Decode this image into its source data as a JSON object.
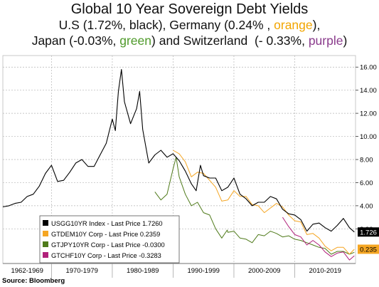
{
  "title": {
    "line1": "Global 10 Year Sovereign Debt Yields",
    "line2_a": "U.S (1.72%, black), Germany (0.24% , ",
    "line2_orange": "orange",
    "line2_b": "),",
    "line3_a": "Japan (-0.03%, ",
    "line3_green": "green",
    "line3_b": ") and Switzerland  (- 0.33%, ",
    "line3_purple": "purple",
    "line3_c": ")"
  },
  "source": "Source: Bloomberg",
  "chart_data": {
    "type": "line",
    "title": "Global 10 Year Sovereign Debt Yields",
    "x_tick_labels": [
      "1962-1969",
      "1970-1979",
      "1980-1989",
      "1990-1999",
      "2000-2009",
      "2010-2019"
    ],
    "x_tick_bounds": [
      1962,
      1970,
      1980,
      1990,
      2000,
      2010,
      2020
    ],
    "xlim": [
      1962,
      2020
    ],
    "ylim": [
      -1,
      17
    ],
    "y_ticks": [
      2,
      4,
      6,
      8,
      10,
      12,
      14,
      16
    ],
    "y_tick_labels": [
      "2.00",
      "4.00",
      "6.00",
      "8.00",
      "10.00",
      "12.00",
      "14.00",
      "16.00"
    ],
    "grid": true,
    "legend_position": "bottom-left",
    "last_price_tags": [
      {
        "label": "1.726",
        "value": 1.726,
        "color": "#000000",
        "text_color": "#ffffff"
      },
      {
        "label": "0.235",
        "value": 0.235,
        "color": "#f5a623",
        "text_color": "#000000"
      }
    ],
    "series": [
      {
        "name": "USGG10YR Index - Last Price 1.7260",
        "color": "#000000",
        "x": [
          1962,
          1963,
          1964,
          1965,
          1966,
          1967,
          1968,
          1969,
          1970,
          1971,
          1972,
          1973,
          1974,
          1975,
          1976,
          1977,
          1978,
          1979,
          1980,
          1980.5,
          1981,
          1981.5,
          1982,
          1983,
          1984,
          1984.5,
          1985,
          1986,
          1987,
          1988,
          1989,
          1990,
          1991,
          1992,
          1993,
          1993.8,
          1994.5,
          1995,
          1996,
          1997,
          1998,
          1999,
          2000,
          2001,
          2002,
          2003,
          2004,
          2005,
          2006,
          2007,
          2008,
          2009,
          2010,
          2011,
          2012,
          2013,
          2014,
          2015,
          2016,
          2017,
          2018,
          2019,
          2019.8
        ],
        "y": [
          3.9,
          4.0,
          4.2,
          4.3,
          4.8,
          5.0,
          5.7,
          6.8,
          7.5,
          6.1,
          6.2,
          6.9,
          7.7,
          8.0,
          7.4,
          7.4,
          8.4,
          9.4,
          11.5,
          10.5,
          13.9,
          15.8,
          13.0,
          11.1,
          12.4,
          13.9,
          10.6,
          7.7,
          8.4,
          8.8,
          8.2,
          8.5,
          7.9,
          7.0,
          5.9,
          5.3,
          7.5,
          6.6,
          6.4,
          6.4,
          5.3,
          5.6,
          6.4,
          5.0,
          4.6,
          4.0,
          4.3,
          4.3,
          4.8,
          4.6,
          3.7,
          3.3,
          3.2,
          2.8,
          1.8,
          2.4,
          2.5,
          2.1,
          1.8,
          2.3,
          2.9,
          2.1,
          1.726
        ]
      },
      {
        "name": "GTDEM10Y Corp - Last Price 0.2359",
        "color": "#f5a623",
        "x": [
          1990,
          1991,
          1992,
          1993,
          1994,
          1995,
          1996,
          1997,
          1998,
          1999,
          2000,
          2001,
          2002,
          2003,
          2004,
          2005,
          2006,
          2007,
          2008,
          2009,
          2010,
          2011,
          2012,
          2013,
          2014,
          2015,
          2016,
          2017,
          2018,
          2019,
          2019.8
        ],
        "y": [
          8.8,
          8.5,
          7.8,
          6.5,
          6.9,
          6.8,
          6.2,
          5.6,
          4.4,
          4.5,
          5.3,
          4.8,
          4.8,
          4.1,
          4.0,
          3.4,
          3.8,
          4.2,
          3.9,
          3.2,
          2.7,
          2.6,
          1.5,
          1.6,
          1.2,
          0.5,
          0.1,
          0.4,
          0.4,
          -0.2,
          0.235
        ]
      },
      {
        "name": "GTJPY10YR Corp - Last Price -0.0300",
        "color": "#4f7a1a",
        "x": [
          1987,
          1988,
          1989,
          1990,
          1990.5,
          1991,
          1992,
          1993,
          1994,
          1995,
          1996,
          1997,
          1998,
          1998.9,
          1999,
          2000,
          2001,
          2002,
          2003,
          2004,
          2005,
          2006,
          2007,
          2008,
          2009,
          2010,
          2011,
          2012,
          2013,
          2014,
          2015,
          2016,
          2017,
          2018,
          2019,
          2019.8
        ],
        "y": [
          5.2,
          4.5,
          5.0,
          7.2,
          8.2,
          6.5,
          5.0,
          4.0,
          4.3,
          3.4,
          3.2,
          2.0,
          1.2,
          1.9,
          1.7,
          1.8,
          1.2,
          1.1,
          0.8,
          1.5,
          1.4,
          1.8,
          1.6,
          1.3,
          1.4,
          1.1,
          1.0,
          0.8,
          0.6,
          0.4,
          0.3,
          -0.2,
          0.05,
          0.05,
          -0.2,
          -0.03
        ]
      },
      {
        "name": "GTCHF10Y Corp - Last Price -0.3283",
        "color": "#b0207a",
        "x": [
          2008,
          2009,
          2010,
          2011,
          2012,
          2013,
          2014,
          2015,
          2016,
          2017,
          2018,
          2019,
          2019.8
        ],
        "y": [
          3.0,
          2.2,
          1.5,
          1.3,
          0.6,
          1.0,
          0.6,
          0.0,
          -0.4,
          -0.1,
          0.0,
          -0.7,
          -0.33
        ]
      }
    ]
  }
}
